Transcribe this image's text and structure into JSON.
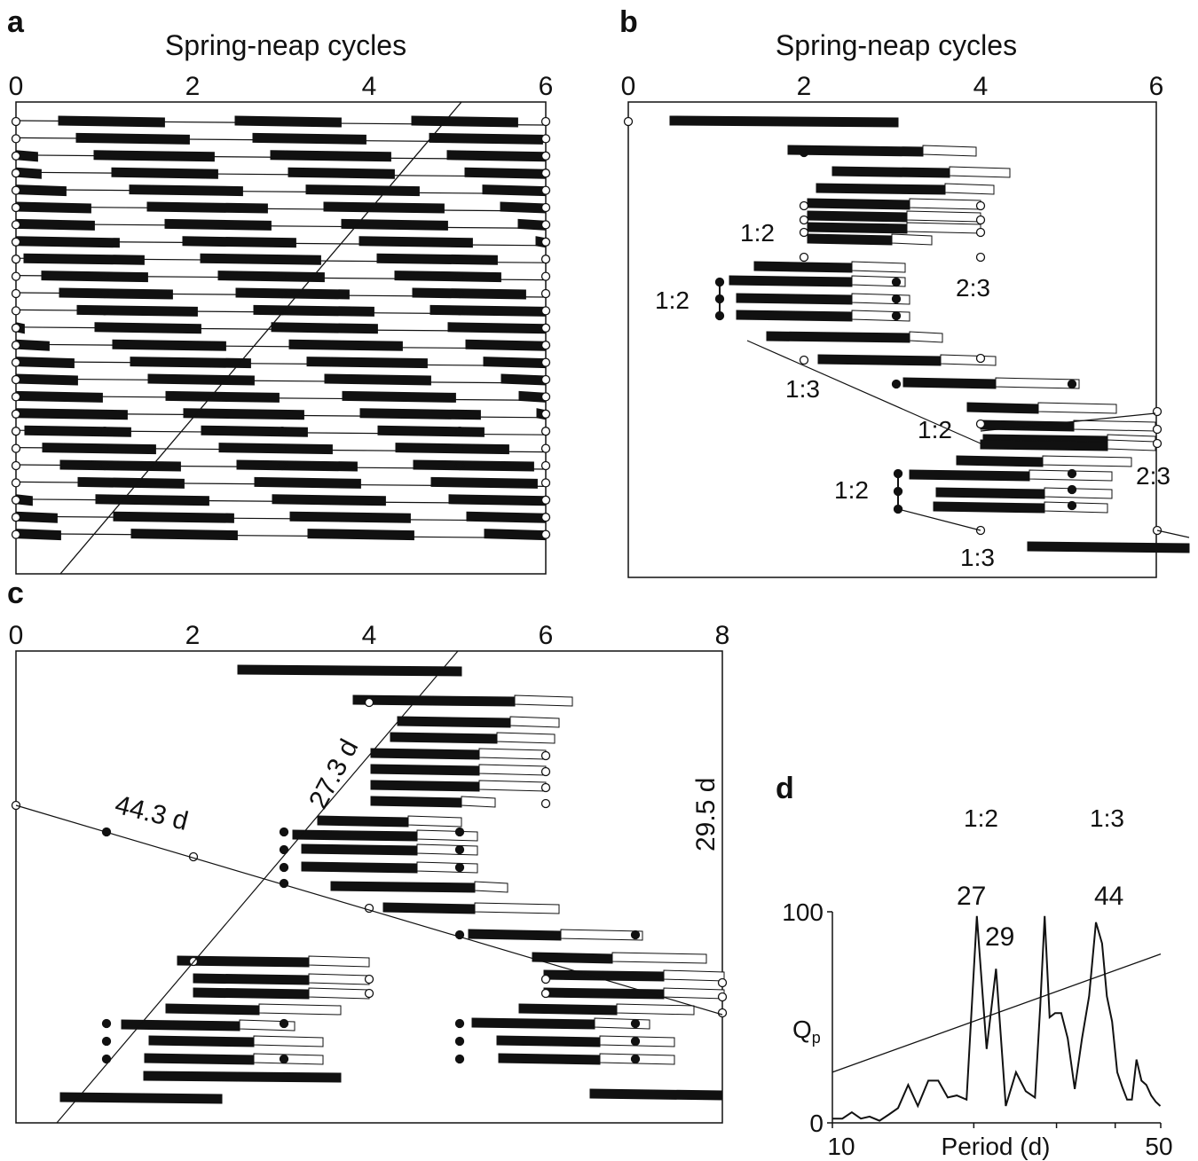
{
  "panels": {
    "a": {
      "letter": "a",
      "title": "Spring-neap cycles",
      "ticks": [
        "0",
        "2",
        "4",
        "6"
      ]
    },
    "b": {
      "letter": "b",
      "title": "Spring-neap cycles",
      "ticks": [
        "0",
        "2",
        "4",
        "6"
      ],
      "labels": [
        "1:2",
        "2:3",
        "1:2",
        "1:3",
        "1:2",
        "2:3",
        "1:2",
        "1:3"
      ]
    },
    "c": {
      "letter": "c",
      "title": "",
      "ticks": [
        "0",
        "2",
        "4",
        "6",
        "8"
      ],
      "labels": {
        "p1": "27.3 d",
        "p2": "44.3 d",
        "p3": "29.5 d"
      }
    },
    "d": {
      "letter": "d",
      "ratios": [
        "1:2",
        "1:3"
      ],
      "peak_labels": [
        "27",
        "29",
        "44"
      ]
    }
  },
  "chart_data": [
    {
      "type": "other",
      "panel": "a",
      "title": "Spring-neap cycles",
      "xlim": [
        0,
        6
      ],
      "note": "raster of activity bars, 25 rows"
    },
    {
      "type": "other",
      "panel": "b",
      "title": "Spring-neap cycles",
      "xlim": [
        0,
        6
      ]
    },
    {
      "type": "other",
      "panel": "c",
      "xlim": [
        0,
        8
      ]
    },
    {
      "type": "line",
      "panel": "d",
      "xlabel": "Period (d)",
      "ylabel": "Qp",
      "x_scale": "log",
      "xlim": [
        10,
        50
      ],
      "ylim": [
        0,
        100
      ],
      "xticks": [
        10,
        50
      ],
      "yticks": [
        0,
        100
      ],
      "series": [
        {
          "x": [
            10,
            10.5,
            11,
            11.5,
            12,
            12.6,
            13.2,
            13.8,
            14.5,
            15.2,
            16,
            16.8,
            17.6,
            18.4,
            19.3,
            20.3,
            21.3,
            22.3,
            23.4,
            24.6,
            25.8,
            27,
            27.7,
            28.3,
            29,
            29.8,
            30.7,
            31.7,
            32.8,
            34,
            35.2,
            36.4,
            37.5,
            38.4,
            39.4,
            40.4,
            41.4,
            42.4,
            43.4,
            44.4,
            45.5,
            46.6,
            47.7,
            48.8,
            49.9
          ],
          "y": [
            2,
            2,
            5,
            2,
            3,
            1,
            4,
            7,
            18,
            8,
            20,
            20,
            12,
            13,
            11,
            98,
            35,
            73,
            8,
            24,
            15,
            12,
            55,
            98,
            50,
            52,
            52,
            40,
            16,
            40,
            60,
            95,
            85,
            60,
            48,
            24,
            17,
            11,
            11,
            30,
            20,
            18,
            13,
            10,
            8
          ]
        },
        {
          "name": "",
          "x": [
            10,
            50
          ],
          "y": [
            24,
            80
          ]
        }
      ]
    }
  ]
}
